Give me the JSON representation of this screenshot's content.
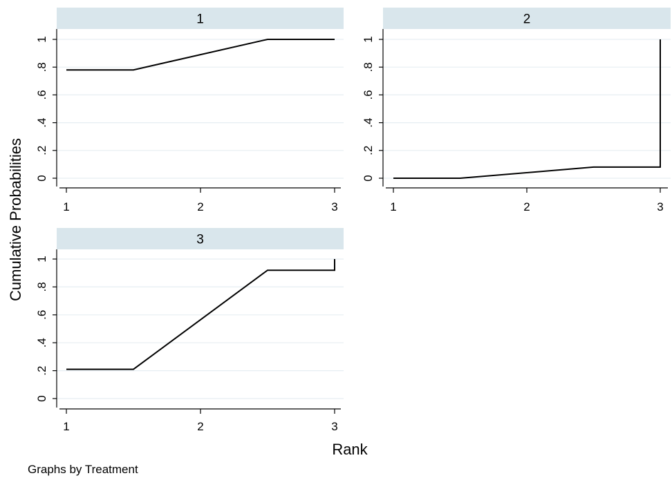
{
  "chart_data": {
    "type": "line",
    "ylabel": "Cumulative Probabilities",
    "xlabel": "Rank",
    "note": "Graphs by Treatment",
    "xlim": [
      1,
      3
    ],
    "ylim": [
      0,
      1
    ],
    "x_ticks": [
      1,
      2,
      3
    ],
    "x_tick_labels": [
      "1",
      "2",
      "3"
    ],
    "y_ticks": [
      0,
      0.2,
      0.4,
      0.6,
      0.8,
      1
    ],
    "y_tick_labels": [
      "0",
      ".2",
      ".4",
      ".6",
      ".8",
      "1"
    ],
    "grid": true,
    "panels": [
      {
        "label": "1",
        "x": [
          1,
          1.5,
          2.5,
          3
        ],
        "y": [
          0.78,
          0.78,
          1.0,
          1.0
        ]
      },
      {
        "label": "2",
        "x": [
          1,
          1.5,
          2.5,
          3,
          3
        ],
        "y": [
          0.0,
          0.0,
          0.08,
          0.08,
          1.0
        ]
      },
      {
        "label": "3",
        "x": [
          1,
          1.5,
          2.5,
          3,
          3
        ],
        "y": [
          0.21,
          0.21,
          0.92,
          0.92,
          1.0
        ]
      }
    ]
  }
}
